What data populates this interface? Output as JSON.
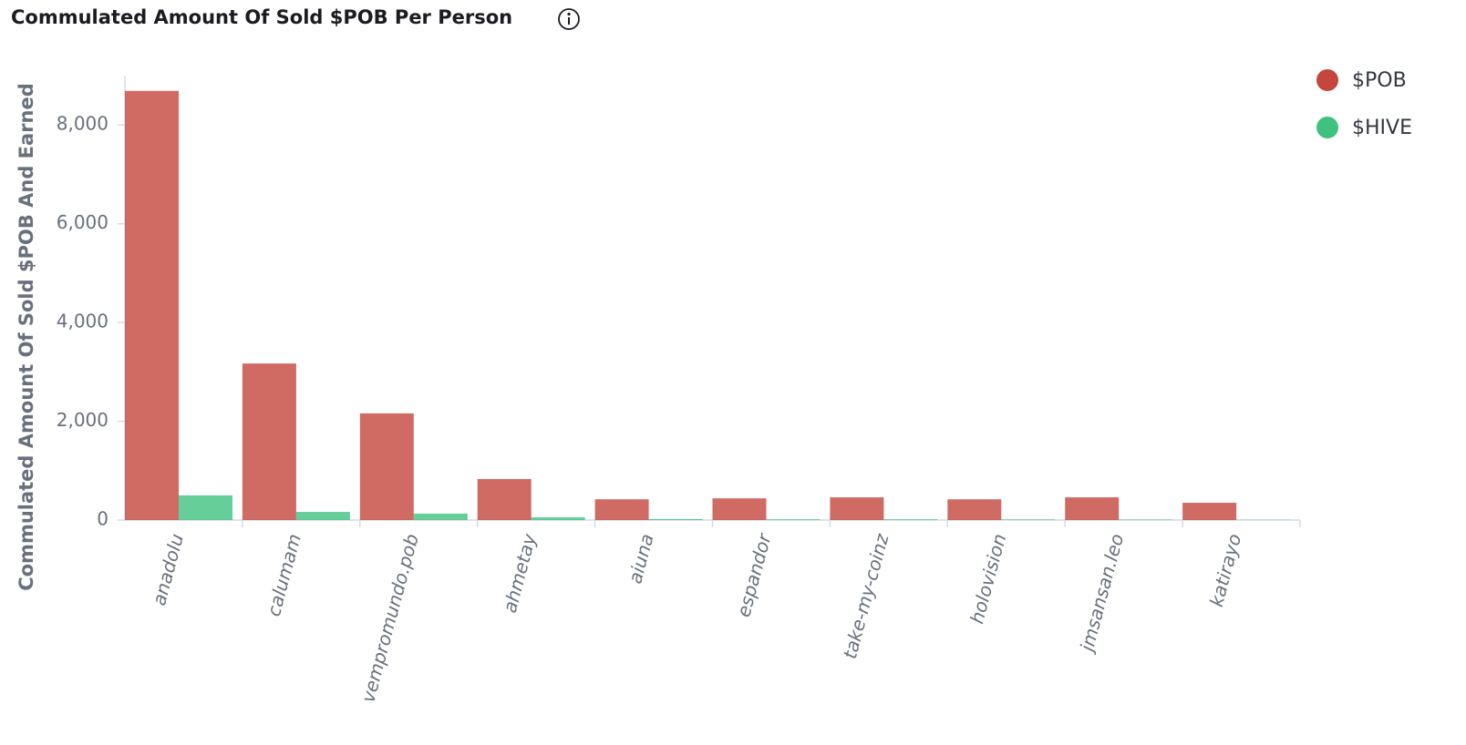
{
  "chart_data": {
    "type": "bar",
    "title": "Commulated Amount Of Sold $POB Per Person",
    "y_label": "Commulated Amount Of Sold $POB And Earned",
    "categories": [
      "anadolu",
      "calumam",
      "vempromundo.pob",
      "ahmetay",
      "aiuna",
      "espandor",
      "take-my-coinz",
      "holovision",
      "jmsansan.leo",
      "katirayo"
    ],
    "series": [
      {
        "name": "$POB",
        "color": "#c4463d",
        "values": [
          8690,
          3170,
          2160,
          830,
          420,
          440,
          460,
          420,
          460,
          350
        ]
      },
      {
        "name": "$HIVE",
        "color": "#3fc27f",
        "values": [
          500,
          165,
          130,
          55,
          20,
          15,
          15,
          12,
          10,
          5
        ]
      }
    ],
    "ylim": [
      0,
      9000
    ],
    "yticks": [
      0,
      {
        "value": 2000,
        "label": "2,000"
      },
      {
        "value": 4000,
        "label": "4,000"
      },
      {
        "value": 6000,
        "label": "6,000"
      },
      {
        "value": 8000,
        "label": "8,000"
      }
    ],
    "legend": "top-right"
  }
}
